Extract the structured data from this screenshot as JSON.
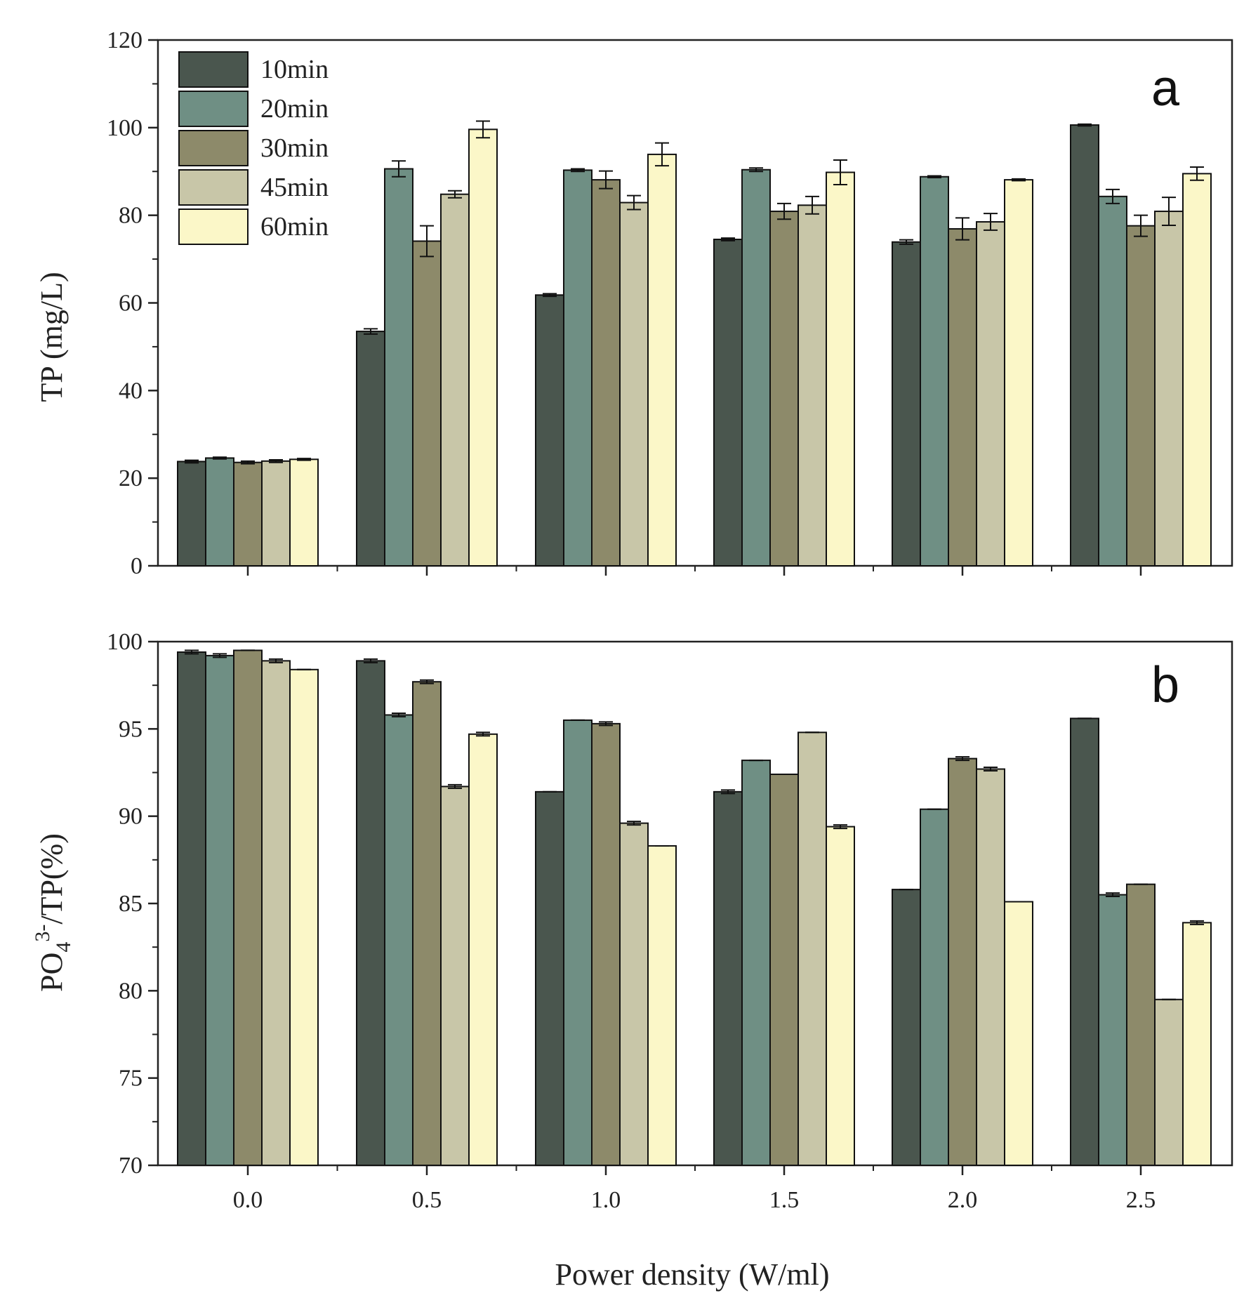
{
  "chart_data": [
    {
      "type": "bar",
      "panel_label": "a",
      "ylabel": "TP (mg/L)",
      "xlabel": "",
      "ylim": [
        0,
        120
      ],
      "yticks": [
        "0",
        "20",
        "40",
        "60",
        "80",
        "100",
        "120"
      ],
      "categories": [
        "0.0",
        "0.5",
        "1.0",
        "1.5",
        "2.0",
        "2.5"
      ],
      "legend_position": "top-left",
      "series": [
        {
          "name": "10min",
          "color": "#4a564e",
          "values": [
            23.8,
            53.5,
            61.8,
            74.5,
            73.9,
            100.6
          ],
          "errors": [
            0.3,
            0.6,
            0.3,
            0.3,
            0.5,
            0.2
          ]
        },
        {
          "name": "20min",
          "color": "#6f8f84",
          "values": [
            24.6,
            90.6,
            90.3,
            90.4,
            88.8,
            84.3
          ],
          "errors": [
            0.2,
            1.8,
            0.3,
            0.4,
            0.2,
            1.6
          ]
        },
        {
          "name": "30min",
          "color": "#8d8a6a",
          "values": [
            23.6,
            74.1,
            88.1,
            80.9,
            76.9,
            77.6
          ],
          "errors": [
            0.3,
            3.5,
            2.0,
            1.8,
            2.5,
            2.4
          ]
        },
        {
          "name": "45min",
          "color": "#c8c6a8",
          "values": [
            23.9,
            84.8,
            82.9,
            82.3,
            78.5,
            80.9
          ],
          "errors": [
            0.3,
            0.8,
            1.6,
            2.0,
            1.9,
            3.2
          ]
        },
        {
          "name": "60min",
          "color": "#fbf7c8",
          "values": [
            24.3,
            99.6,
            93.9,
            89.8,
            88.1,
            89.5
          ],
          "errors": [
            0.2,
            1.9,
            2.6,
            2.8,
            0.2,
            1.5
          ]
        }
      ]
    },
    {
      "type": "bar",
      "panel_label": "b",
      "ylabel_main": "PO",
      "ylabel_sub": "4",
      "ylabel_sup": "3-",
      "ylabel_rest": "/TP(%)",
      "xlabel": "Power density (W/ml)",
      "ylim": [
        70,
        100
      ],
      "yticks": [
        "70",
        "75",
        "80",
        "85",
        "90",
        "95",
        "100"
      ],
      "categories": [
        "0.0",
        "0.5",
        "1.0",
        "1.5",
        "2.0",
        "2.5"
      ],
      "series": [
        {
          "name": "10min",
          "color": "#4a564e",
          "values": [
            99.4,
            98.9,
            91.4,
            91.4,
            85.8,
            95.6
          ],
          "errors": [
            0.1,
            0.1,
            0.0,
            0.1,
            0.0,
            0.0
          ]
        },
        {
          "name": "20min",
          "color": "#6f8f84",
          "values": [
            99.2,
            95.8,
            95.5,
            93.2,
            90.4,
            85.5
          ],
          "errors": [
            0.1,
            0.1,
            0.0,
            0.0,
            0.0,
            0.1
          ]
        },
        {
          "name": "30min",
          "color": "#8d8a6a",
          "values": [
            99.5,
            97.7,
            95.3,
            92.4,
            93.3,
            86.1
          ],
          "errors": [
            0.0,
            0.1,
            0.1,
            0.0,
            0.1,
            0.0
          ]
        },
        {
          "name": "45min",
          "color": "#c8c6a8",
          "values": [
            98.9,
            91.7,
            89.6,
            94.8,
            92.7,
            79.5
          ],
          "errors": [
            0.1,
            0.1,
            0.1,
            0.0,
            0.1,
            0.0
          ]
        },
        {
          "name": "60min",
          "color": "#fbf7c8",
          "values": [
            98.4,
            94.7,
            88.3,
            89.4,
            85.1,
            83.9
          ],
          "errors": [
            0.0,
            0.1,
            0.0,
            0.1,
            0.0,
            0.1
          ]
        }
      ]
    }
  ]
}
